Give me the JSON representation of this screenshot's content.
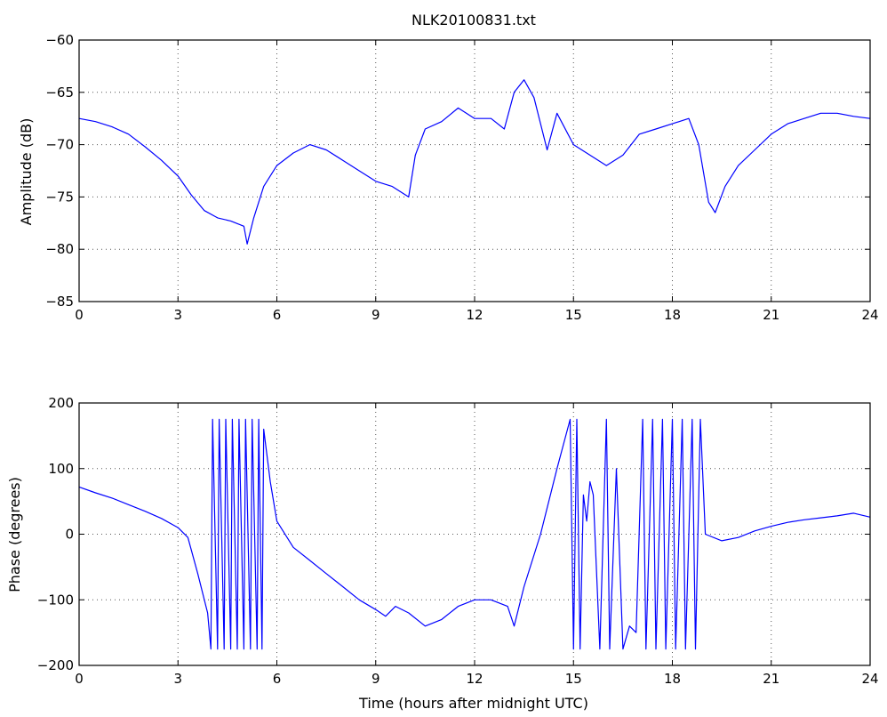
{
  "title": "NLK20100831.txt",
  "chart_data": [
    {
      "type": "line",
      "title": "NLK20100831.txt",
      "xlabel": "",
      "ylabel": "Amplitude (dB)",
      "xlim": [
        0,
        24
      ],
      "ylim": [
        -85,
        -60
      ],
      "xticks": [
        0,
        3,
        6,
        9,
        12,
        15,
        18,
        21,
        24
      ],
      "yticks": [
        -85,
        -80,
        -75,
        -70,
        -65,
        -60
      ],
      "xtick_labels": [
        "0",
        "3",
        "6",
        "9",
        "12",
        "15",
        "18",
        "21",
        "24"
      ],
      "ytick_labels": [
        "−85",
        "−80",
        "−75",
        "−70",
        "−65",
        "−60"
      ],
      "grid": true,
      "color": "#0000ff",
      "series": [
        {
          "x": [
            0,
            0.5,
            1.0,
            1.5,
            2.0,
            2.5,
            3.0,
            3.4,
            3.8,
            4.2,
            4.6,
            5.0,
            5.1,
            5.3,
            5.6,
            6.0,
            6.5,
            7.0,
            7.5,
            8.0,
            8.5,
            9.0,
            9.5,
            10.0,
            10.2,
            10.5,
            11.0,
            11.5,
            12.0,
            12.5,
            12.9,
            13.2,
            13.5,
            13.8,
            14.2,
            14.5,
            15.0,
            15.5,
            16.0,
            16.5,
            17.0,
            17.5,
            18.0,
            18.5,
            18.8,
            19.1,
            19.3,
            19.6,
            20.0,
            20.5,
            21.0,
            21.5,
            22.0,
            22.5,
            23.0,
            23.5,
            24.0
          ],
          "values": [
            -67.5,
            -67.8,
            -68.3,
            -69.0,
            -70.2,
            -71.5,
            -73.0,
            -74.8,
            -76.3,
            -77.0,
            -77.3,
            -77.8,
            -79.5,
            -77.0,
            -74.0,
            -72.0,
            -70.8,
            -70.0,
            -70.5,
            -71.5,
            -72.5,
            -73.5,
            -74.0,
            -75.0,
            -71.0,
            -68.5,
            -67.8,
            -66.5,
            -67.5,
            -67.5,
            -68.5,
            -65.0,
            -63.8,
            -65.5,
            -70.5,
            -67.0,
            -70.0,
            -71.0,
            -72.0,
            -71.0,
            -69.0,
            -68.5,
            -68.0,
            -67.5,
            -70.0,
            -75.5,
            -76.5,
            -74.0,
            -72.0,
            -70.5,
            -69.0,
            -68.0,
            -67.5,
            -67.0,
            -67.0,
            -67.3,
            -67.5
          ]
        }
      ]
    },
    {
      "type": "line",
      "title": "",
      "xlabel": "Time (hours after midnight UTC)",
      "ylabel": "Phase (degrees)",
      "xlim": [
        0,
        24
      ],
      "ylim": [
        -200,
        200
      ],
      "xticks": [
        0,
        3,
        6,
        9,
        12,
        15,
        18,
        21,
        24
      ],
      "yticks": [
        -200,
        -100,
        0,
        100,
        200
      ],
      "xtick_labels": [
        "0",
        "3",
        "6",
        "9",
        "12",
        "15",
        "18",
        "21",
        "24"
      ],
      "ytick_labels": [
        "−200",
        "−100",
        "0",
        "100",
        "200"
      ],
      "grid": true,
      "color": "#0000ff",
      "series": [
        {
          "x": [
            0,
            0.5,
            1.0,
            1.5,
            2.0,
            2.5,
            3.0,
            3.3,
            3.6,
            3.9,
            4.0,
            4.05,
            4.2,
            4.25,
            4.4,
            4.45,
            4.6,
            4.65,
            4.8,
            4.85,
            5.0,
            5.05,
            5.2,
            5.25,
            5.4,
            5.45,
            5.55,
            5.6,
            5.8,
            6.0,
            6.5,
            7.0,
            7.5,
            8.0,
            8.5,
            9.0,
            9.3,
            9.6,
            10.0,
            10.5,
            11.0,
            11.5,
            12.0,
            12.5,
            13.0,
            13.2,
            13.5,
            14.0,
            14.5,
            14.9,
            15.0,
            15.1,
            15.2,
            15.3,
            15.4,
            15.5,
            15.6,
            15.8,
            16.0,
            16.1,
            16.3,
            16.5,
            16.7,
            16.9,
            17.1,
            17.2,
            17.4,
            17.5,
            17.7,
            17.8,
            18.0,
            18.1,
            18.3,
            18.4,
            18.6,
            18.7,
            18.85,
            19.0,
            19.5,
            20.0,
            20.5,
            21.0,
            21.5,
            22.0,
            22.5,
            23.0,
            23.5,
            24.0
          ],
          "values": [
            72,
            63,
            55,
            45,
            35,
            24,
            10,
            -5,
            -60,
            -120,
            -175,
            175,
            -175,
            175,
            -175,
            175,
            -175,
            175,
            -175,
            175,
            -175,
            175,
            -175,
            175,
            -175,
            175,
            -175,
            160,
            80,
            20,
            -20,
            -40,
            -60,
            -80,
            -100,
            -115,
            -125,
            -110,
            -120,
            -140,
            -130,
            -110,
            -100,
            -100,
            -110,
            -140,
            -80,
            0,
            100,
            175,
            -175,
            175,
            -175,
            60,
            20,
            80,
            60,
            -175,
            175,
            -175,
            100,
            -175,
            -140,
            -150,
            175,
            -175,
            175,
            -175,
            175,
            -175,
            175,
            -175,
            175,
            -175,
            175,
            -175,
            175,
            0,
            -10,
            -5,
            5,
            12,
            18,
            22,
            25,
            28,
            32,
            26
          ]
        }
      ]
    }
  ]
}
